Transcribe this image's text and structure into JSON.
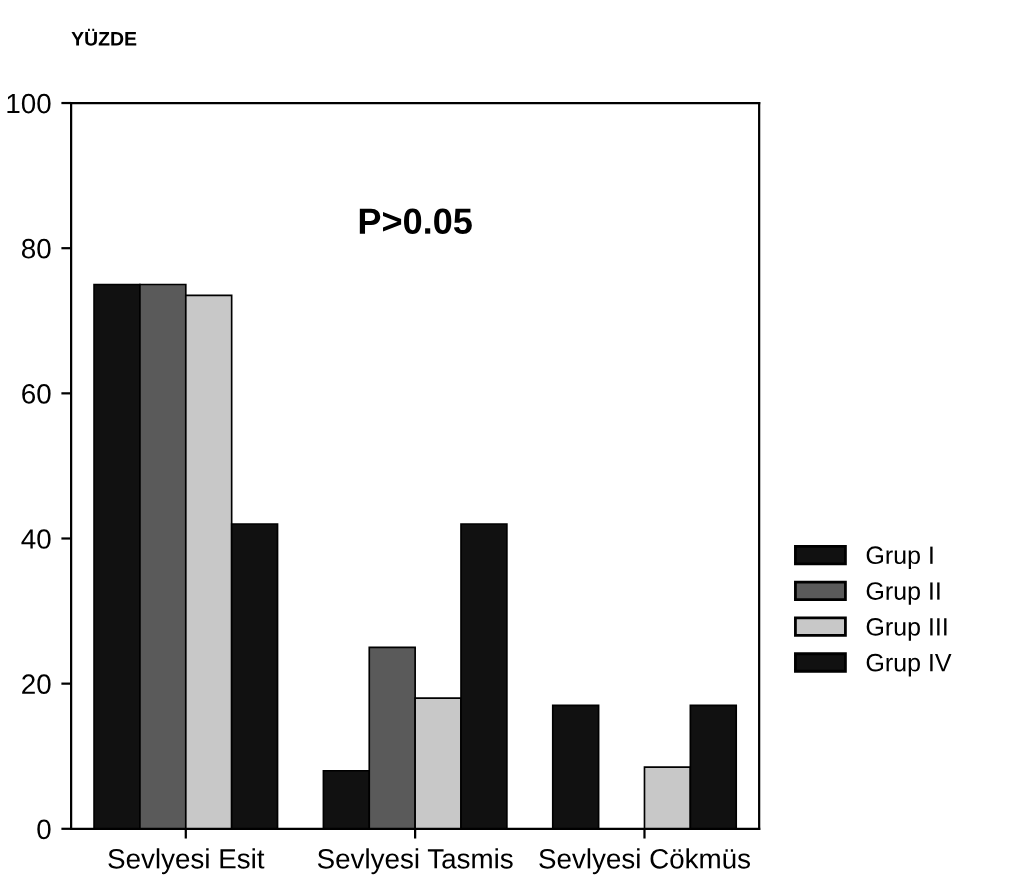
{
  "chart_data": {
    "type": "bar",
    "ylabel": "YÜZDE",
    "categories": [
      "Sevlyesi Esit",
      "Sevlyesi Tasmis",
      "Sevlyesi Cökmüs"
    ],
    "series": [
      {
        "name": "Grup I",
        "color": "#111111",
        "values": [
          75,
          8,
          17
        ]
      },
      {
        "name": "Grup II",
        "color": "#5a5a5a",
        "values": [
          75,
          25,
          null
        ]
      },
      {
        "name": "Grup III",
        "color": "#c8c8c8",
        "values": [
          73.5,
          18,
          8.5
        ]
      },
      {
        "name": "Grup IV",
        "color": "#111111",
        "values": [
          42,
          42,
          17
        ]
      }
    ],
    "ylim": [
      0,
      100
    ],
    "yticks": [
      0,
      20,
      40,
      60,
      80,
      100
    ],
    "grid": false,
    "legend": "right",
    "annotations": [
      "P>0.05"
    ]
  }
}
